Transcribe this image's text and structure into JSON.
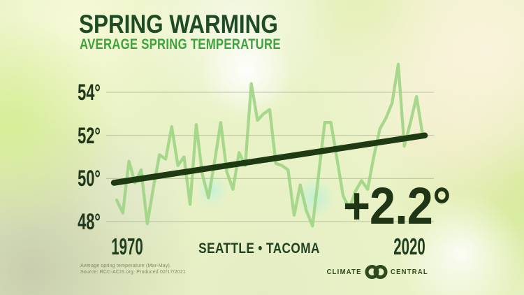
{
  "header": {
    "title": "SPRING WARMING",
    "subtitle": "AVERAGE SPRING TEMPERATURE"
  },
  "chart_data": {
    "type": "line",
    "title": "Spring Warming — Average Spring Temperature",
    "x_start": 1970,
    "x_end": 2020,
    "x_ticks": [
      "1970",
      "2020"
    ],
    "station_label": "SEATTLE • TACOMA",
    "y_ticks": [
      "54°",
      "52°",
      "50°",
      "48°"
    ],
    "y_tick_values": [
      54,
      52,
      50,
      48
    ],
    "ylim": [
      47.5,
      55.5
    ],
    "grid": "horizontal",
    "legend": "none",
    "unit": "°F",
    "years": [
      1970,
      1971,
      1972,
      1973,
      1974,
      1975,
      1976,
      1977,
      1978,
      1979,
      1980,
      1981,
      1982,
      1983,
      1984,
      1985,
      1986,
      1987,
      1988,
      1989,
      1990,
      1991,
      1992,
      1993,
      1994,
      1995,
      1996,
      1997,
      1998,
      1999,
      2000,
      2001,
      2002,
      2003,
      2004,
      2005,
      2006,
      2007,
      2008,
      2009,
      2010,
      2011,
      2012,
      2013,
      2014,
      2015,
      2016,
      2017,
      2018,
      2019,
      2020
    ],
    "values": [
      49.0,
      48.4,
      50.8,
      49.8,
      50.4,
      47.9,
      49.6,
      51.1,
      50.9,
      52.4,
      50.6,
      51.0,
      48.8,
      52.5,
      50.2,
      49.1,
      50.8,
      52.6,
      50.3,
      49.5,
      51.2,
      50.6,
      54.4,
      52.7,
      53.0,
      53.2,
      50.7,
      50.6,
      50.4,
      48.3,
      49.7,
      48.5,
      47.8,
      50.2,
      52.6,
      52.6,
      50.9,
      49.2,
      48.6,
      49.4,
      49.9,
      49.5,
      51.0,
      52.3,
      52.8,
      53.5,
      55.3,
      51.5,
      52.6,
      53.8,
      52.0
    ],
    "series_color": "#9dd383",
    "trend_color": "#1e3a12",
    "trend": {
      "start_value": 49.8,
      "end_value": 52.0,
      "change_label": "+2.2°"
    }
  },
  "footer": {
    "source_line1": "Average spring temperature (Mar-May).",
    "source_line2": "Source: RCC-ACIS.org. Produced 02/17/2021",
    "logo_left": "CLIMATE",
    "logo_right": "CENTRAL"
  }
}
